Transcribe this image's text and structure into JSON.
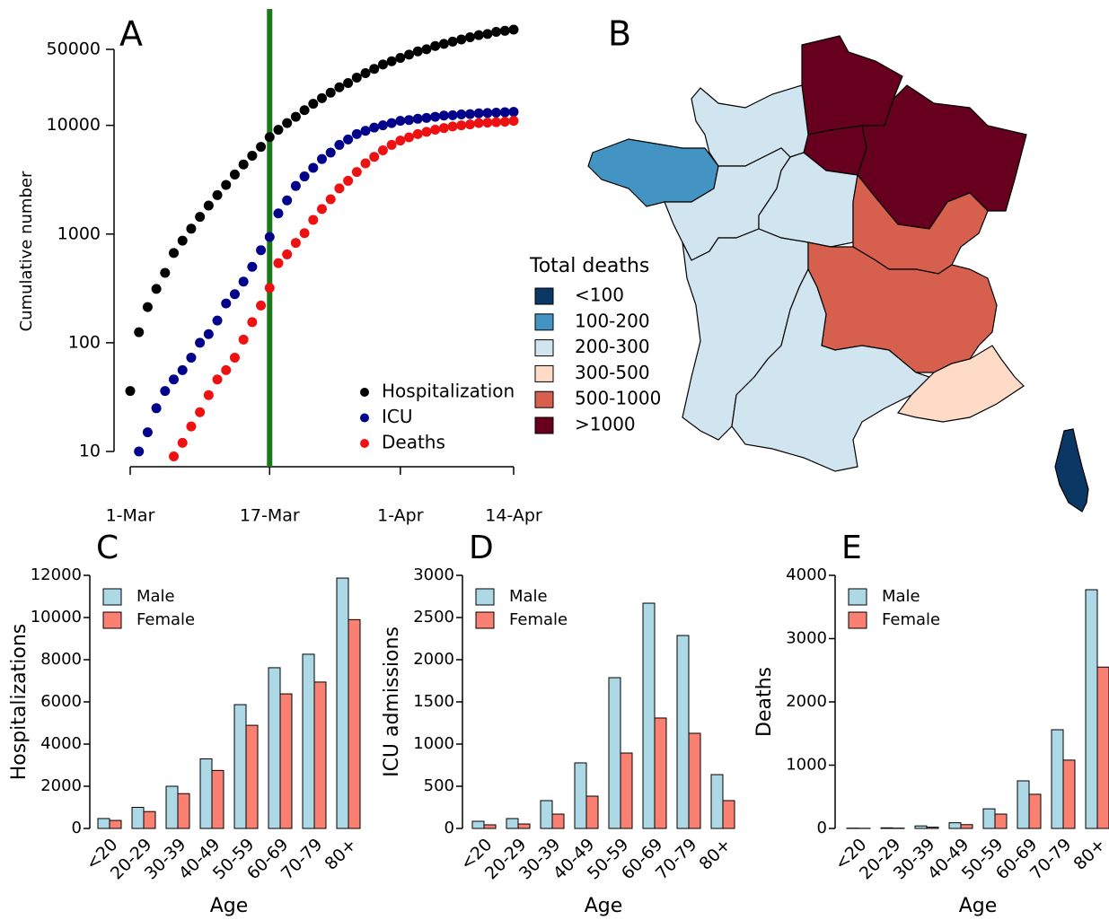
{
  "chart_data": [
    {
      "type": "scatter",
      "panel_label": "A",
      "y_label": "Cumulative number",
      "log_y": true,
      "x": [
        0,
        1,
        2,
        3,
        4,
        5,
        6,
        7,
        8,
        9,
        10,
        11,
        12,
        13,
        14,
        15,
        16,
        17,
        18,
        19,
        20,
        21,
        22,
        23,
        24,
        25,
        26,
        27,
        28,
        29,
        30,
        31,
        32,
        33,
        34,
        35,
        36,
        37,
        38,
        39,
        40,
        41,
        42,
        43,
        44
      ],
      "xlim": [
        0,
        44
      ],
      "xticks": [
        {
          "value": 0,
          "label": "1-Mar"
        },
        {
          "value": 16,
          "label": "17-Mar"
        },
        {
          "value": 31,
          "label": "1-Apr"
        },
        {
          "value": 44,
          "label": "14-Apr"
        }
      ],
      "ylim": [
        10,
        50000
      ],
      "yticks": [
        10,
        100,
        1000,
        10000,
        50000
      ],
      "vline": {
        "x": 16,
        "color": "#1a7a1a"
      },
      "series": [
        {
          "name": "Hospitalization",
          "color": "#000000",
          "values": [
            36,
            125,
            213,
            313,
            440,
            670,
            870,
            1120,
            1440,
            1830,
            2280,
            2830,
            3530,
            4370,
            5260,
            6340,
            7800,
            9100,
            10500,
            12000,
            13800,
            15800,
            17800,
            20000,
            22400,
            24500,
            27500,
            30200,
            33100,
            36300,
            38900,
            41700,
            44700,
            47900,
            50100,
            53700,
            56200,
            58900,
            61700,
            64600,
            67600,
            69200,
            72400,
            74100,
            75900
          ]
        },
        {
          "name": "ICU",
          "color": "#00008b",
          "values": [
            null,
            10,
            15,
            25,
            36,
            46,
            56,
            73,
            100,
            120,
            160,
            230,
            280,
            365,
            500,
            710,
            940,
            1550,
            2040,
            2770,
            3390,
            4070,
            4900,
            5620,
            6610,
            7410,
            8320,
            8910,
            9550,
            10000,
            10500,
            11000,
            11200,
            11500,
            11700,
            12000,
            12300,
            12400,
            12600,
            12700,
            12900,
            13000,
            13100,
            13200,
            13300
          ]
        },
        {
          "name": "Deaths",
          "color": "#ee1111",
          "values": [
            null,
            null,
            null,
            null,
            null,
            9,
            12,
            17,
            23,
            33,
            46,
            56,
            73,
            107,
            155,
            220,
            320,
            540,
            650,
            830,
            1020,
            1350,
            1700,
            2090,
            2630,
            3090,
            3720,
            4470,
            5130,
            5890,
            6610,
            7240,
            7760,
            8320,
            8710,
            9120,
            9440,
            9770,
            10000,
            10200,
            10500,
            10600,
            10700,
            10800,
            11000
          ]
        }
      ]
    },
    {
      "type": "map",
      "panel_label": "B",
      "legend_title": "Total deaths",
      "bins": [
        {
          "label": "<100",
          "color": "#0b3764"
        },
        {
          "label": "100-200",
          "color": "#4393c3"
        },
        {
          "label": "200-300",
          "color": "#d1e5f0"
        },
        {
          "label": "300-500",
          "color": "#fddbc7"
        },
        {
          "label": "500-1000",
          "color": "#d6604d"
        },
        {
          "label": ">1000",
          "color": "#67001f"
        }
      ],
      "regions": [
        {
          "bin": 5
        },
        {
          "bin": 5
        },
        {
          "bin": 5
        },
        {
          "bin": 2
        },
        {
          "bin": 1
        },
        {
          "bin": 2
        },
        {
          "bin": 2
        },
        {
          "bin": 4
        },
        {
          "bin": 2
        },
        {
          "bin": 4
        },
        {
          "bin": 2
        },
        {
          "bin": 3
        },
        {
          "bin": 0
        }
      ]
    },
    {
      "type": "bar",
      "panel_label": "C",
      "y_label": "Hospitalizations",
      "x_label": "Age",
      "categories": [
        "<20",
        "20-29",
        "30-39",
        "40-49",
        "50-59",
        "60-69",
        "70-79",
        "80+"
      ],
      "ylim": [
        0,
        12000
      ],
      "yticks": [
        0,
        2000,
        4000,
        6000,
        8000,
        10000,
        12000
      ],
      "series": [
        {
          "name": "Male",
          "color": "#add8e6",
          "values": [
            470,
            1000,
            2000,
            3300,
            5870,
            7620,
            8260,
            11870
          ]
        },
        {
          "name": "Female",
          "color": "#fa8072",
          "values": [
            380,
            800,
            1650,
            2750,
            4890,
            6380,
            6940,
            9900
          ]
        }
      ]
    },
    {
      "type": "bar",
      "panel_label": "D",
      "y_label": "ICU admissions",
      "x_label": "Age",
      "categories": [
        "<20",
        "20-29",
        "30-39",
        "40-49",
        "50-59",
        "60-69",
        "70-79",
        "80+"
      ],
      "ylim": [
        0,
        3000
      ],
      "yticks": [
        0,
        500,
        1000,
        1500,
        2000,
        2500,
        3000
      ],
      "series": [
        {
          "name": "Male",
          "color": "#add8e6",
          "values": [
            85,
            117,
            330,
            777,
            1787,
            2670,
            2287,
            638
          ]
        },
        {
          "name": "Female",
          "color": "#fa8072",
          "values": [
            43,
            53,
            170,
            383,
            894,
            1309,
            1128,
            330
          ]
        }
      ]
    },
    {
      "type": "bar",
      "panel_label": "E",
      "y_label": "Deaths",
      "x_label": "Age",
      "categories": [
        "<20",
        "20-29",
        "30-39",
        "40-49",
        "50-59",
        "60-69",
        "70-79",
        "80+"
      ],
      "ylim": [
        0,
        4000
      ],
      "yticks": [
        0,
        1000,
        2000,
        3000,
        4000
      ],
      "series": [
        {
          "name": "Male",
          "color": "#add8e6",
          "values": [
            5,
            10,
            40,
            90,
            310,
            752,
            1560,
            3773
          ]
        },
        {
          "name": "Female",
          "color": "#fa8072",
          "values": [
            3,
            5,
            20,
            60,
            227,
            540,
            1080,
            2550
          ]
        }
      ]
    }
  ]
}
